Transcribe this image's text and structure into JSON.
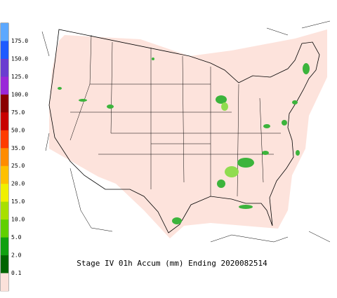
{
  "title": "Stage IV 01h Accum (mm) Ending 2020082514",
  "legend": {
    "colors": [
      "#5ca8ff",
      "#1e5aff",
      "#6a3cd0",
      "#9a28d8",
      "#8a0000",
      "#c80000",
      "#ff3c00",
      "#ff8c00",
      "#ffc000",
      "#f0f000",
      "#a8e000",
      "#60d000",
      "#10a010",
      "#006400",
      "#fbe1da"
    ],
    "labels": [
      "175.0",
      "150.0",
      "125.0",
      "100.0",
      "75.0",
      "50.0",
      "35.0",
      "25.0",
      "20.0",
      "15.0",
      "10.0",
      "5.0",
      "2.0",
      "0.1"
    ]
  }
}
